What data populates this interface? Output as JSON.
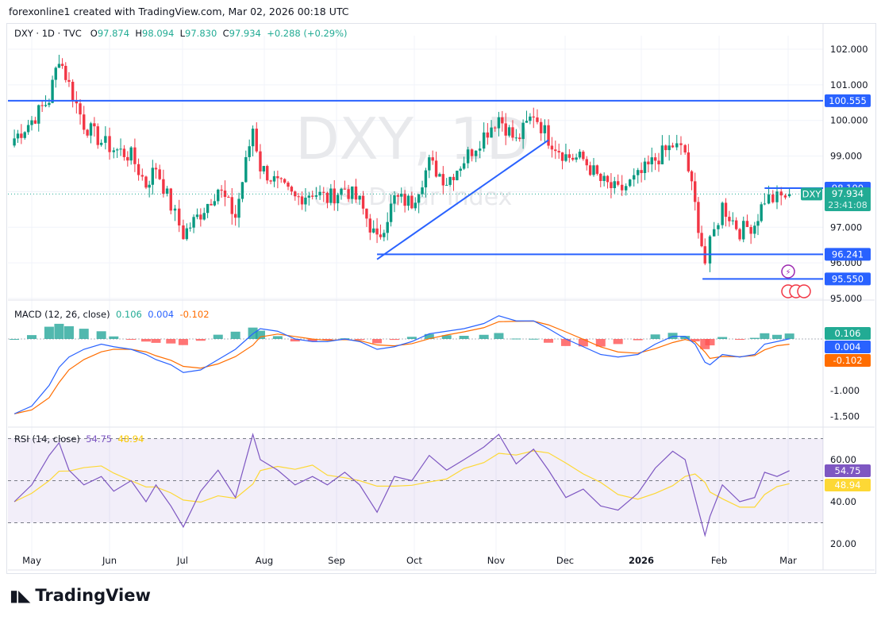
{
  "attribution": "forexonline1 created with TradingView.com, Mar 02, 2026 00:18 UTC",
  "legend": {
    "symbol": "DXY · 1D · TVC",
    "open_label": "O",
    "open": "97.874",
    "high_label": "H",
    "high": "98.094",
    "low_label": "L",
    "low": "97.830",
    "close_label": "C",
    "close": "97.934",
    "change": "+0.288 (+0.29%)"
  },
  "watermark": {
    "title": "DXY, 1D",
    "subtitle": "U.S. Dollar Index"
  },
  "macd_legend": {
    "name": "MACD (12, 26, close)",
    "hist": "0.106",
    "macd": "0.004",
    "signal": "-0.102"
  },
  "rsi_legend": {
    "name": "RSI (14, close)",
    "rsi": "54.75",
    "ma": "48.94"
  },
  "price_axis": [
    "102.000",
    "101.000",
    "100.000",
    "99.000",
    "97.000",
    "96.000",
    "95.000"
  ],
  "price_tags": {
    "resistance": "100.555",
    "range_high": "98.100",
    "symbol": "DXY",
    "last": "97.934",
    "countdown": "23:41:08",
    "support": "96.241",
    "low": "95.550"
  },
  "macd_axis": [
    "-1.000",
    "-1.500"
  ],
  "macd_tags": [
    "0.106",
    "0.004",
    "-0.102"
  ],
  "rsi_axis": [
    "60.00",
    "40.00",
    "20.00"
  ],
  "rsi_tags": [
    "54.75",
    "48.94"
  ],
  "time_axis": [
    "May",
    "Jun",
    "Jul",
    "Aug",
    "Sep",
    "Oct",
    "Nov",
    "Dec",
    "2026",
    "Feb",
    "Mar"
  ],
  "logo": "TradingView",
  "colors": {
    "up": "#089981",
    "down": "#f23645",
    "line": "#2962ff",
    "macd": "#2962ff",
    "signal": "#ff6d00",
    "rsi": "#7e57c2",
    "rsi_ma": "#fdd835"
  },
  "chart_data": {
    "type": "candlestick",
    "symbol": "DXY",
    "interval": "1D",
    "ylim": [
      94.8,
      102.3
    ],
    "dates": [
      "2025-04-24",
      "2025-05-01",
      "2025-05-08",
      "2025-05-12",
      "2025-05-16",
      "2025-05-22",
      "2025-05-29",
      "2025-06-03",
      "2025-06-10",
      "2025-06-16",
      "2025-06-20",
      "2025-06-26",
      "2025-07-01",
      "2025-07-08",
      "2025-07-15",
      "2025-07-22",
      "2025-07-29",
      "2025-08-01",
      "2025-08-08",
      "2025-08-15",
      "2025-08-22",
      "2025-08-28",
      "2025-09-04",
      "2025-09-10",
      "2025-09-17",
      "2025-09-24",
      "2025-10-01",
      "2025-10-08",
      "2025-10-15",
      "2025-10-22",
      "2025-10-30",
      "2025-11-05",
      "2025-11-12",
      "2025-11-19",
      "2025-11-25",
      "2025-12-02",
      "2025-12-09",
      "2025-12-16",
      "2025-12-23",
      "2025-12-31",
      "2026-01-07",
      "2026-01-14",
      "2026-01-19",
      "2026-01-23",
      "2026-01-27",
      "2026-01-29",
      "2026-02-03",
      "2026-02-10",
      "2026-02-16",
      "2026-02-20",
      "2026-02-25",
      "2026-03-02"
    ],
    "close": [
      99.5,
      100.0,
      100.6,
      101.8,
      101.0,
      99.9,
      99.4,
      99.2,
      99.0,
      98.2,
      98.7,
      97.6,
      96.8,
      97.4,
      98.1,
      97.3,
      99.8,
      98.7,
      98.2,
      97.8,
      98.0,
      97.8,
      98.1,
      97.7,
      96.6,
      97.8,
      97.7,
      98.8,
      98.3,
      98.9,
      99.6,
      100.1,
      99.4,
      100.2,
      99.5,
      99.0,
      98.9,
      98.3,
      98.0,
      98.4,
      98.9,
      99.3,
      99.1,
      97.6,
      96.0,
      96.5,
      97.6,
      96.9,
      97.1,
      97.8,
      97.8,
      97.934
    ],
    "rsi": [
      40,
      48,
      62,
      68,
      55,
      48,
      52,
      45,
      50,
      40,
      48,
      38,
      28,
      45,
      55,
      42,
      72,
      60,
      55,
      48,
      52,
      48,
      54,
      48,
      35,
      52,
      50,
      62,
      55,
      60,
      66,
      72,
      58,
      65,
      55,
      42,
      46,
      38,
      36,
      44,
      56,
      64,
      60,
      42,
      24,
      33,
      48,
      40,
      42,
      54,
      52,
      54.75
    ],
    "macd": [
      -1.45,
      -1.3,
      -0.9,
      -0.55,
      -0.35,
      -0.2,
      -0.1,
      -0.15,
      -0.2,
      -0.3,
      -0.4,
      -0.5,
      -0.65,
      -0.6,
      -0.4,
      -0.2,
      0.1,
      0.2,
      0.15,
      0.0,
      -0.05,
      -0.05,
      0.0,
      -0.05,
      -0.2,
      -0.15,
      -0.05,
      0.1,
      0.15,
      0.2,
      0.3,
      0.45,
      0.35,
      0.35,
      0.2,
      0.0,
      -0.15,
      -0.3,
      -0.35,
      -0.3,
      -0.1,
      0.05,
      0.05,
      -0.1,
      -0.45,
      -0.5,
      -0.3,
      -0.35,
      -0.3,
      -0.1,
      -0.05,
      0.004
    ],
    "levels": {
      "resistance": 100.555,
      "range_high": 98.1,
      "support": 96.241,
      "low": 95.55
    },
    "trendline": [
      {
        "date": "2025-09-17",
        "price": 96.1
      },
      {
        "date": "2025-11-25",
        "price": 99.45
      }
    ],
    "rsi_bands": [
      70,
      30
    ],
    "macd_ylim": [
      -1.6,
      0.6
    ],
    "rsi_ylim": [
      15,
      75
    ]
  }
}
